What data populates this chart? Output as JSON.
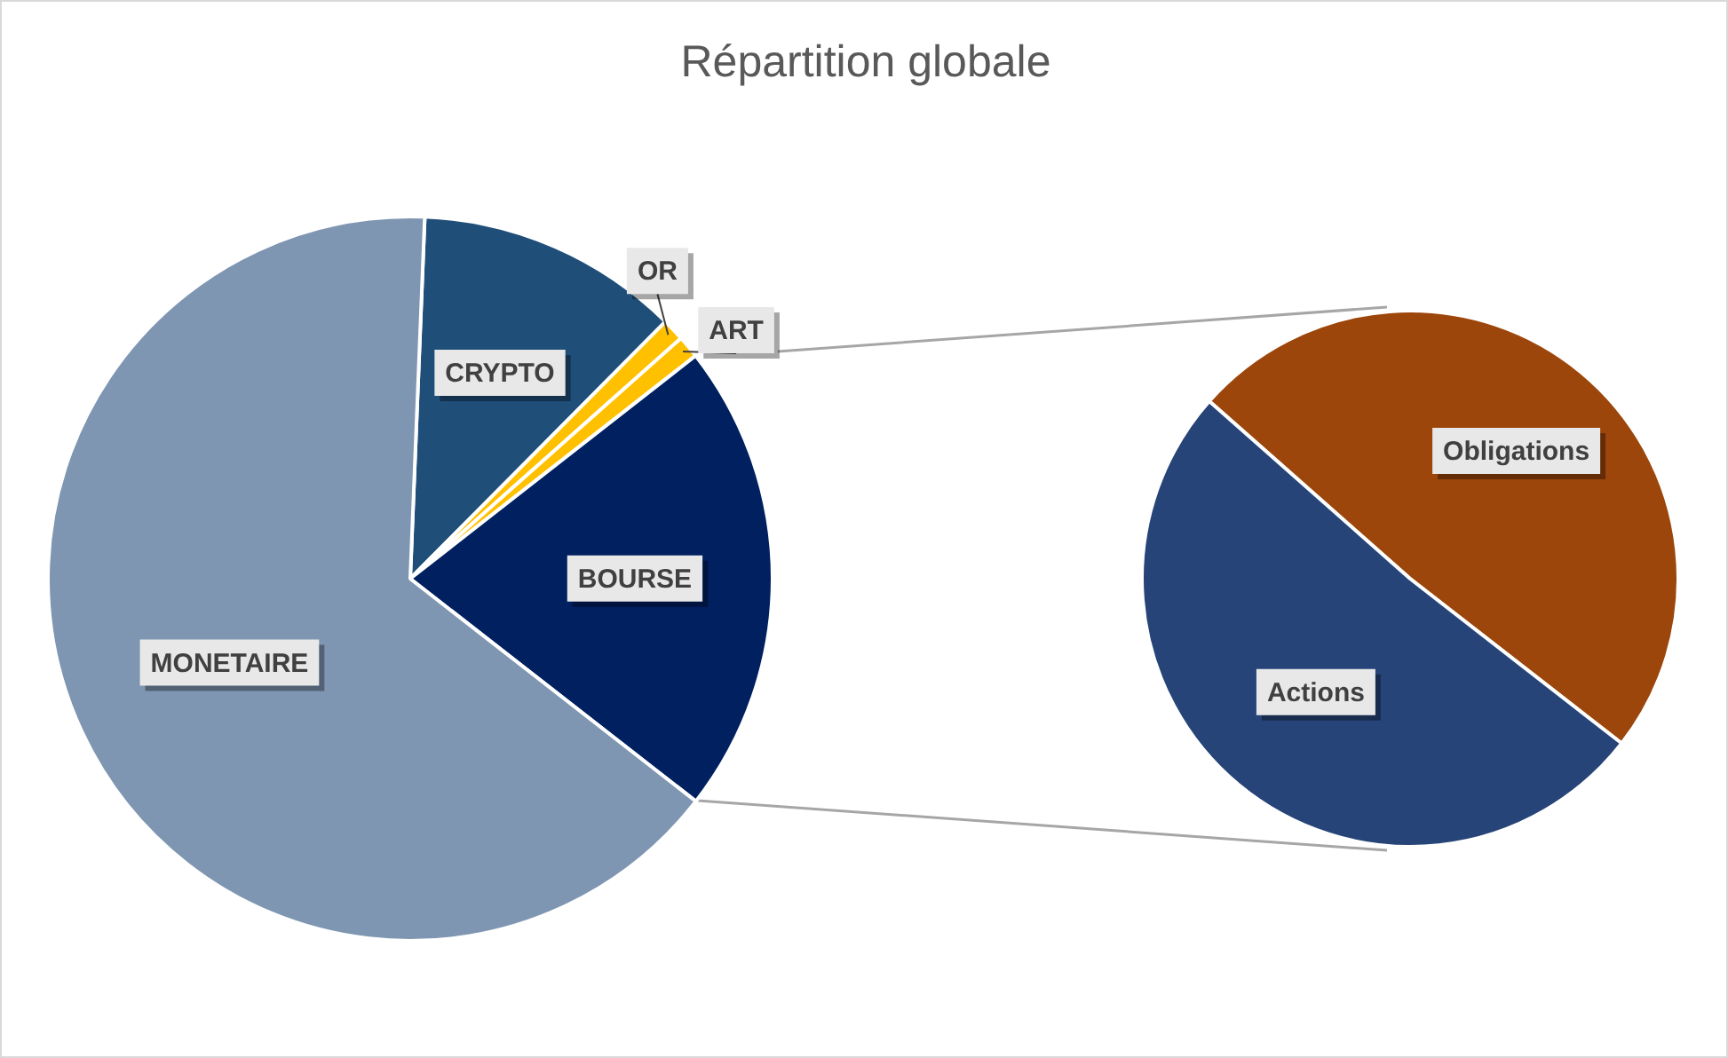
{
  "chart_data": [
    {
      "type": "pie",
      "title": "Répartition globale",
      "categories": [
        "CRYPTO",
        "OR",
        "ART",
        "BOURSE",
        "MONETAIRE"
      ],
      "values": [
        11.8,
        1,
        1,
        21.1,
        65.1
      ],
      "colors": [
        "#1f4e79",
        "#ffc000",
        "#ffc000",
        "#002060",
        "#7f96b2"
      ]
    },
    {
      "type": "pie",
      "categories": [
        "Obligations",
        "Actions"
      ],
      "values": [
        49,
        51
      ],
      "colors": [
        "#9c460b",
        "#264478"
      ]
    }
  ]
}
